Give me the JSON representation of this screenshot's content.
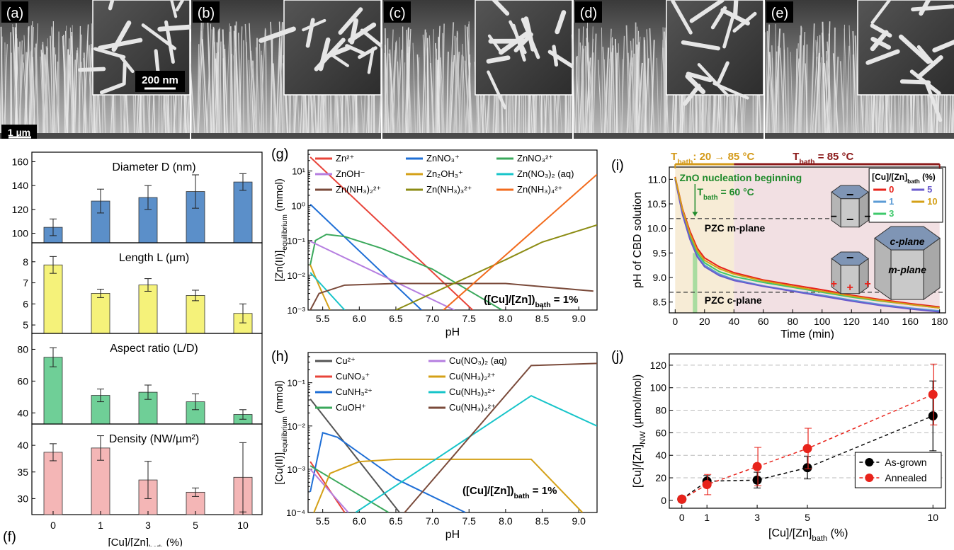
{
  "sem": {
    "labels": [
      "(a)",
      "(b)",
      "(c)",
      "(d)",
      "(e)"
    ],
    "scale_inset": "200 nm",
    "scale_main": "1 µm"
  },
  "f": {
    "label": "(f)",
    "xlabel": "[Cu]/[Zn]",
    "xlabel_sub": "bath",
    "xlabel_unit": " (%)",
    "categories": [
      "0",
      "1",
      "3",
      "5",
      "10"
    ],
    "subplots": [
      {
        "title": "Diameter D (nm)",
        "color": "#5b8fc9",
        "ticks": [
          100,
          120,
          140,
          160
        ],
        "ylim": [
          92,
          168
        ],
        "values": [
          105,
          127,
          130,
          135,
          143
        ],
        "errors": [
          7,
          10,
          10,
          14,
          7
        ]
      },
      {
        "title": "Length L (µm)",
        "color": "#f5f27a",
        "ticks": [
          5,
          6,
          7,
          8
        ],
        "ylim": [
          4.6,
          8.9
        ],
        "values": [
          7.85,
          6.5,
          6.9,
          6.4,
          5.55
        ],
        "errors": [
          0.4,
          0.2,
          0.3,
          0.25,
          0.45
        ]
      },
      {
        "title": "Aspect ratio (L/D)",
        "color": "#6fcf97",
        "ticks": [
          40,
          60,
          80
        ],
        "ylim": [
          33,
          90
        ],
        "values": [
          75,
          51,
          53,
          47,
          39
        ],
        "errors": [
          6,
          4,
          4.5,
          5,
          3
        ]
      },
      {
        "title": "Density (NW/µm²)",
        "color": "#f4b6b6",
        "ticks": [
          30,
          35,
          40
        ],
        "ylim": [
          27,
          44
        ],
        "values": [
          38.7,
          39.5,
          33.5,
          31.2,
          34
        ],
        "errors": [
          1.6,
          2.3,
          3.5,
          0.8,
          6.5
        ]
      }
    ]
  },
  "g": {
    "label": "(g)",
    "ylabel_main": "[Zn(II)]",
    "ylabel_sub": "equilibrium",
    "ylabel_unit": " (mmol)",
    "xlabel": "pH",
    "xticks": [
      "5.5",
      "6.0",
      "6.5",
      "7.0",
      "7.5",
      "8.0",
      "8.5",
      "9.0"
    ],
    "yticks": [
      "10⁻³",
      "10⁻²",
      "10⁻¹",
      "10⁰",
      "10¹"
    ],
    "annotation": "([Cu]/[Zn])",
    "annotation_sub": "bath",
    "annotation_end": " = 1%",
    "legend": [
      {
        "name": "Zn²⁺",
        "color": "#e8443a"
      },
      {
        "name": "ZnNO₃⁺",
        "color": "#1f6fd6"
      },
      {
        "name": "ZnNO₃²⁺",
        "color": "#3aa85b"
      },
      {
        "name": "ZnOH⁻",
        "color": "#b57ee0"
      },
      {
        "name": "Zn₂OH₃⁺",
        "color": "#d4a017"
      },
      {
        "name": "Zn(NO₃)₂ (aq)",
        "color": "#17c4c9"
      },
      {
        "name": "Zn(NH₃)₂²⁺",
        "color": "#7a4a3a"
      },
      {
        "name": "Zn(NH₃)₃²⁺",
        "color": "#8c8c14"
      },
      {
        "name": "Zn(NH₃)₄²⁺",
        "color": "#f26b1d"
      }
    ]
  },
  "h": {
    "label": "(h)",
    "ylabel_main": "[Cu(II)]",
    "ylabel_sub": "equilibrium",
    "ylabel_unit": " (mmol)",
    "xlabel": "pH",
    "xticks": [
      "5.5",
      "6.0",
      "6.5",
      "7.0",
      "7.5",
      "8.0",
      "8.5",
      "9.0"
    ],
    "yticks": [
      "10⁻⁴",
      "10⁻³",
      "10⁻²",
      "10⁻¹"
    ],
    "annotation": "([Cu]/[Zn])",
    "annotation_sub": "bath",
    "annotation_end": " = 1%",
    "legend": [
      {
        "name": "Cu²⁺",
        "color": "#555555"
      },
      {
        "name": "Cu(NO₃)₂ (aq)",
        "color": "#b57ee0"
      },
      {
        "name": "CuNO₃⁺",
        "color": "#e8443a"
      },
      {
        "name": "Cu(NH₃)₂²⁺",
        "color": "#d4a017"
      },
      {
        "name": "CuNH₃²⁺",
        "color": "#1f6fd6"
      },
      {
        "name": "Cu(NH₃)₃²⁺",
        "color": "#17c4c9"
      },
      {
        "name": "CuOH⁺",
        "color": "#3aa85b"
      },
      {
        "name": "Cu(NH₃)₄²⁺",
        "color": "#7a4a3a"
      }
    ]
  },
  "i": {
    "label": "(i)",
    "tbath_ramp": "T",
    "tbath_ramp_sub": "bath",
    "tbath_ramp_val": ": 20 → 85 °C",
    "tbath_const": "T",
    "tbath_const_sub": "bath",
    "tbath_const_val": " = 85 °C",
    "nucleation": "ZnO nucleation beginning",
    "nuc_T": "T",
    "nuc_T_sub": "bath",
    "nuc_T_val": " = 60 °C",
    "pzc_m": "PZC m-plane",
    "pzc_c": "PZC c-plane",
    "xlabel": "Time (min)",
    "ylabel": "pH of CBD solution",
    "xticks": [
      "0",
      "20",
      "40",
      "60",
      "80",
      "100",
      "120",
      "140",
      "160",
      "180"
    ],
    "yticks": [
      "8.5",
      "9.0",
      "9.5",
      "10.0",
      "10.5",
      "11.0"
    ],
    "legend_title": "[Cu]/[Zn]",
    "legend_title_sub": "bath",
    "legend_title_end": " (%)",
    "legend": [
      {
        "name": "0",
        "color": "#e8231b"
      },
      {
        "name": "5",
        "color": "#6a5acd"
      },
      {
        "name": "1",
        "color": "#5b9bd5"
      },
      {
        "name": "10",
        "color": "#d4a017"
      },
      {
        "name": "3",
        "color": "#3ec96b"
      }
    ],
    "c_plane": "c-plane",
    "m_plane": "m-plane"
  },
  "j": {
    "label": "(j)",
    "xlabel": "[Cu]/[Zn]",
    "xlabel_sub": "bath",
    "xlabel_unit": " (%)",
    "ylabel": "[Cu]/[Zn]",
    "ylabel_sub": "NW",
    "ylabel_unit": " (µmol/mol)",
    "xticks": [
      "0",
      "1",
      "3",
      "5",
      "10"
    ],
    "yticks": [
      "0",
      "20",
      "40",
      "60",
      "80",
      "100",
      "120"
    ]
  },
  "chart_data": [
    {
      "type": "bar",
      "title": "Diameter D (nm)",
      "categories": [
        "0",
        "1",
        "3",
        "5",
        "10"
      ],
      "values": [
        105,
        127,
        130,
        135,
        143
      ],
      "errors": [
        7,
        10,
        10,
        14,
        7
      ]
    },
    {
      "type": "bar",
      "title": "Length L (µm)",
      "categories": [
        "0",
        "1",
        "3",
        "5",
        "10"
      ],
      "values": [
        7.85,
        6.5,
        6.9,
        6.4,
        5.55
      ],
      "errors": [
        0.4,
        0.2,
        0.3,
        0.25,
        0.45
      ]
    },
    {
      "type": "bar",
      "title": "Aspect ratio (L/D)",
      "categories": [
        "0",
        "1",
        "3",
        "5",
        "10"
      ],
      "values": [
        75,
        51,
        53,
        47,
        39
      ],
      "errors": [
        6,
        4,
        4.5,
        5,
        3
      ]
    },
    {
      "type": "bar",
      "title": "Density (NW/µm²)",
      "categories": [
        "0",
        "1",
        "3",
        "5",
        "10"
      ],
      "values": [
        38.7,
        39.5,
        33.5,
        31.2,
        34
      ],
      "errors": [
        1.6,
        2.3,
        3.5,
        0.8,
        6.5
      ]
    },
    {
      "type": "line",
      "xlabel": "pH",
      "ylabel": "[Zn(II)]equilibrium (mmol)",
      "log_y": true,
      "xlim": [
        5.3,
        9.25
      ],
      "ylim": [
        0.001,
        40
      ],
      "series": [
        {
          "name": "Zn²⁺",
          "points": [
            [
              5.33,
              25
            ],
            [
              7.55,
              0.001
            ]
          ]
        },
        {
          "name": "ZnNO₃⁺",
          "points": [
            [
              5.33,
              1.1
            ],
            [
              6.85,
              0.001
            ]
          ]
        },
        {
          "name": "ZnNO₃²⁺",
          "points": [
            [
              5.33,
              0.02
            ],
            [
              5.4,
              0.1
            ],
            [
              5.55,
              0.15
            ],
            [
              5.8,
              0.13
            ],
            [
              6.3,
              0.06
            ],
            [
              7.0,
              0.015
            ],
            [
              7.95,
              0.001
            ]
          ]
        },
        {
          "name": "ZnOH⁻",
          "points": [
            [
              5.33,
              0.095
            ],
            [
              7.3,
              0.001
            ]
          ]
        },
        {
          "name": "Zn₂OH₃⁺",
          "points": [
            [
              5.33,
              0.02
            ],
            [
              5.45,
              0.005
            ],
            [
              5.6,
              0.001
            ]
          ]
        },
        {
          "name": "Zn(NO₃)₂ (aq)",
          "points": [
            [
              5.33,
              0.012
            ],
            [
              5.8,
              0.001
            ]
          ]
        },
        {
          "name": "Zn(NH₃)₂²⁺",
          "points": [
            [
              5.33,
              0.001
            ],
            [
              5.45,
              0.003
            ],
            [
              5.8,
              0.0052
            ],
            [
              6.5,
              0.0058
            ],
            [
              8.0,
              0.0058
            ],
            [
              9.2,
              0.0035
            ]
          ]
        },
        {
          "name": "Zn(NH₃)₃²⁺",
          "points": [
            [
              6.5,
              0.001
            ],
            [
              8.0,
              0.028
            ],
            [
              8.5,
              0.09
            ],
            [
              9.25,
              0.28
            ]
          ]
        },
        {
          "name": "Zn(NH₃)₄²⁺",
          "points": [
            [
              7.15,
              0.001
            ],
            [
              9.25,
              8
            ]
          ]
        }
      ]
    },
    {
      "type": "line",
      "xlabel": "pH",
      "ylabel": "[Cu(II)]equilibrium (mmol)",
      "log_y": true,
      "xlim": [
        5.3,
        9.25
      ],
      "ylim": [
        0.0001,
        0.5
      ],
      "series": [
        {
          "name": "Cu²⁺",
          "points": [
            [
              5.33,
              0.042
            ],
            [
              6.55,
              0.0001
            ]
          ]
        },
        {
          "name": "CuNO₃⁺",
          "points": [
            [
              5.33,
              0.0015
            ],
            [
              5.8,
              0.0001
            ]
          ]
        },
        {
          "name": "CuNH₃²⁺",
          "points": [
            [
              5.33,
              0.0003
            ],
            [
              5.5,
              0.007
            ],
            [
              5.7,
              0.0055
            ],
            [
              6.5,
              0.0006
            ],
            [
              7.45,
              0.0001
            ]
          ]
        },
        {
          "name": "CuOH⁺",
          "points": [
            [
              5.33,
              0.0012
            ],
            [
              6.4,
              0.0001
            ]
          ]
        },
        {
          "name": "Cu(NO₃)₂ (aq)",
          "points": [
            [
              5.33,
              0.001
            ],
            [
              5.85,
              0.0001
            ]
          ]
        },
        {
          "name": "Cu(NH₃)₂²⁺",
          "points": [
            [
              5.38,
              0.0001
            ],
            [
              5.6,
              0.0008
            ],
            [
              6.0,
              0.0015
            ],
            [
              6.5,
              0.0017
            ],
            [
              8.35,
              0.0017
            ],
            [
              9.05,
              0.0001
            ]
          ]
        },
        {
          "name": "Cu(NH₃)₃²⁺",
          "points": [
            [
              5.95,
              0.0001
            ],
            [
              8.35,
              0.05
            ],
            [
              9.25,
              0.01
            ]
          ]
        },
        {
          "name": "Cu(NH₃)₄²⁺",
          "points": [
            [
              6.62,
              0.0001
            ],
            [
              8.35,
              0.25
            ],
            [
              9.25,
              0.28
            ]
          ]
        }
      ]
    },
    {
      "type": "line",
      "xlabel": "Time (min)",
      "ylabel": "pH of CBD solution",
      "xlim": [
        -4,
        184
      ],
      "ylim": [
        8.28,
        11.25
      ],
      "series": [
        {
          "name": "0",
          "points": [
            [
              0,
              11.05
            ],
            [
              5,
              10.4
            ],
            [
              10,
              9.95
            ],
            [
              15,
              9.6
            ],
            [
              20,
              9.4
            ],
            [
              30,
              9.22
            ],
            [
              40,
              9.1
            ],
            [
              60,
              8.95
            ],
            [
              80,
              8.85
            ],
            [
              100,
              8.75
            ],
            [
              120,
              8.64
            ],
            [
              140,
              8.55
            ],
            [
              160,
              8.47
            ],
            [
              180,
              8.4
            ]
          ]
        },
        {
          "name": "1",
          "points": [
            [
              0,
              11.02
            ],
            [
              5,
              10.3
            ],
            [
              10,
              9.8
            ],
            [
              15,
              9.45
            ],
            [
              20,
              9.25
            ],
            [
              30,
              9.07
            ],
            [
              40,
              8.96
            ],
            [
              60,
              8.83
            ],
            [
              80,
              8.73
            ],
            [
              100,
              8.64
            ],
            [
              120,
              8.54
            ],
            [
              140,
              8.45
            ],
            [
              160,
              8.38
            ],
            [
              180,
              8.32
            ]
          ]
        },
        {
          "name": "3",
          "points": [
            [
              0,
              11.03
            ],
            [
              5,
              10.35
            ],
            [
              10,
              9.85
            ],
            [
              15,
              9.5
            ],
            [
              20,
              9.3
            ],
            [
              30,
              9.12
            ],
            [
              40,
              9.02
            ],
            [
              60,
              8.9
            ],
            [
              80,
              8.8
            ],
            [
              100,
              8.7
            ],
            [
              120,
              8.6
            ],
            [
              140,
              8.52
            ],
            [
              160,
              8.45
            ],
            [
              180,
              8.38
            ]
          ]
        },
        {
          "name": "5",
          "points": [
            [
              0,
              11.0
            ],
            [
              5,
              10.28
            ],
            [
              10,
              9.78
            ],
            [
              15,
              9.42
            ],
            [
              20,
              9.22
            ],
            [
              30,
              9.04
            ],
            [
              40,
              8.94
            ],
            [
              60,
              8.82
            ],
            [
              80,
              8.72
            ],
            [
              100,
              8.62
            ],
            [
              120,
              8.52
            ],
            [
              140,
              8.43
            ],
            [
              160,
              8.36
            ],
            [
              180,
              8.3
            ]
          ]
        },
        {
          "name": "10",
          "points": [
            [
              0,
              11.04
            ],
            [
              5,
              10.38
            ],
            [
              10,
              9.9
            ],
            [
              15,
              9.55
            ],
            [
              20,
              9.35
            ],
            [
              30,
              9.18
            ],
            [
              40,
              9.07
            ],
            [
              60,
              8.93
            ],
            [
              80,
              8.82
            ],
            [
              100,
              8.72
            ],
            [
              120,
              8.62
            ],
            [
              140,
              8.53
            ],
            [
              160,
              8.45
            ],
            [
              180,
              8.38
            ]
          ]
        }
      ],
      "hlines": [
        {
          "y": 10.2,
          "label": "PZC m-plane"
        },
        {
          "y": 8.7,
          "label": "PZC c-plane"
        }
      ]
    },
    {
      "type": "scatter",
      "xlabel": "[Cu]/[Zn]bath (%)",
      "ylabel": "[Cu]/[Zn]NW (µmol/mol)",
      "xlim": [
        -0.5,
        10.5
      ],
      "ylim": [
        -7,
        130
      ],
      "legend_position": "bottom-right",
      "series": [
        {
          "name": "As-grown",
          "color": "#000000",
          "x": [
            0,
            1,
            3,
            5,
            10
          ],
          "y": [
            1,
            17,
            18,
            29,
            75
          ],
          "err": [
            1,
            5,
            7,
            10,
            31
          ]
        },
        {
          "name": "Annealed",
          "color": "#e8231b",
          "x": [
            0,
            1,
            3,
            5,
            10
          ],
          "y": [
            1,
            14,
            30,
            46,
            94
          ],
          "err": [
            1,
            9,
            17,
            18,
            27
          ]
        }
      ]
    }
  ]
}
